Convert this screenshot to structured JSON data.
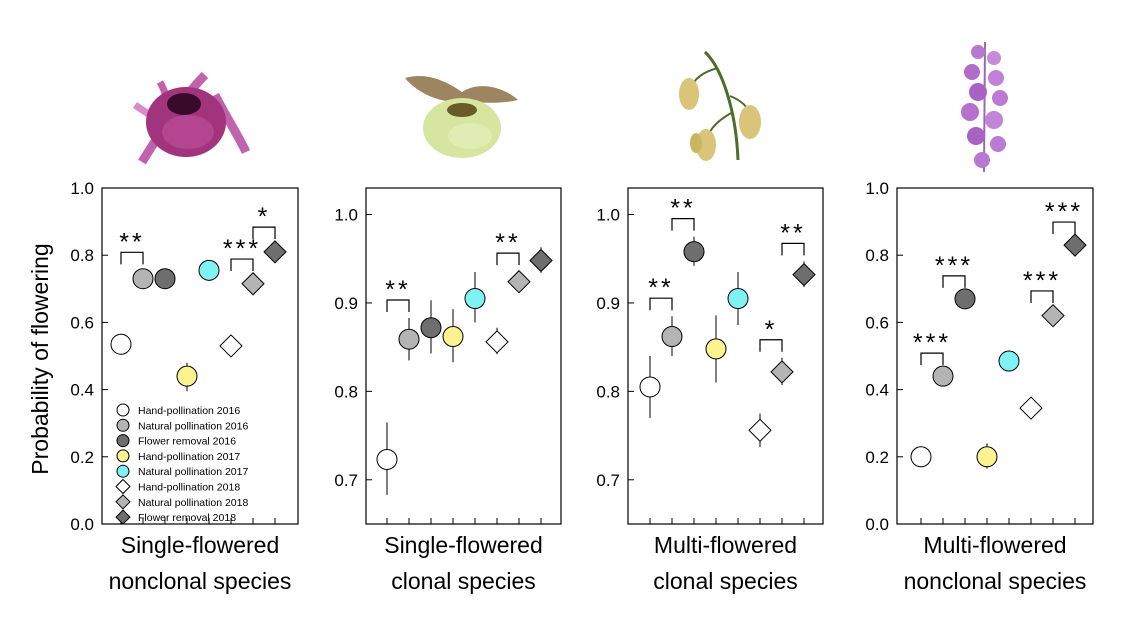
{
  "figure": {
    "y_axis_label": "Probability of flowering",
    "legend_entries": [
      {
        "label": "Hand-pollination 2016",
        "marker": "circle",
        "fill": "#ffffff"
      },
      {
        "label": "Natural pollination 2016",
        "marker": "circle",
        "fill": "#b4b4b4"
      },
      {
        "label": "Flower removal 2016",
        "marker": "circle",
        "fill": "#6e6e6e"
      },
      {
        "label": "Hand-pollination 2017",
        "marker": "circle",
        "fill": "#fbf38f"
      },
      {
        "label": "Natural pollination 2017",
        "marker": "circle",
        "fill": "#7ff2f4"
      },
      {
        "label": "Hand-pollination 2018",
        "marker": "diamond",
        "fill": "#ffffff"
      },
      {
        "label": "Natural pollination 2018",
        "marker": "diamond",
        "fill": "#b4b4b4"
      },
      {
        "label": "Flower removal 2018",
        "marker": "diamond",
        "fill": "#6e6e6e"
      }
    ],
    "flower_illustrations": [
      {
        "depicts": "pink single-flowered orchid",
        "color": "#b04a9a"
      },
      {
        "depicts": "pale green single-flowered orchid",
        "color": "#d8e6a2"
      },
      {
        "depicts": "yellow multi-flowered orchid",
        "color": "#d8c37a"
      },
      {
        "depicts": "purple multi-flowered orchid spike",
        "color": "#b87ad0"
      }
    ]
  },
  "chart_data": [
    {
      "type": "scatter",
      "title": "Single-flowered nonclonal species",
      "title_lines": [
        "Single-flowered",
        "nonclonal species"
      ],
      "ylabel": "Probability of flowering",
      "ylim": [
        0.0,
        1.0
      ],
      "yticks": [
        "0.0",
        "0.2",
        "0.4",
        "0.6",
        "0.8",
        "1.0"
      ],
      "show_legend": true,
      "points": [
        {
          "series": "Hand-pollination 2016",
          "y": 0.535,
          "lo": 0.505,
          "hi": 0.565
        },
        {
          "series": "Natural pollination 2016",
          "y": 0.73,
          "lo": 0.705,
          "hi": 0.755
        },
        {
          "series": "Flower removal 2016",
          "y": 0.73,
          "lo": 0.705,
          "hi": 0.755
        },
        {
          "series": "Hand-pollination 2017",
          "y": 0.44,
          "lo": 0.395,
          "hi": 0.48
        },
        {
          "series": "Natural pollination 2017",
          "y": 0.755,
          "lo": 0.735,
          "hi": 0.78
        },
        {
          "series": "Hand-pollination 2018",
          "y": 0.53,
          "lo": 0.515,
          "hi": 0.55
        },
        {
          "series": "Natural pollination 2018",
          "y": 0.715,
          "lo": 0.695,
          "hi": 0.735
        },
        {
          "series": "Flower removal 2018",
          "y": 0.81,
          "lo": 0.79,
          "hi": 0.83
        }
      ],
      "brackets": [
        {
          "from": 0,
          "to": 1,
          "label": "**"
        },
        {
          "from": 5,
          "to": 6,
          "label": "***"
        },
        {
          "from": 6,
          "to": 7,
          "label": "*"
        }
      ]
    },
    {
      "type": "scatter",
      "title": "Single-flowered clonal species",
      "title_lines": [
        "Single-flowered",
        "clonal species"
      ],
      "ylim": [
        0.65,
        1.03
      ],
      "yticks": [
        "0.7",
        "0.8",
        "0.9",
        "1.0"
      ],
      "show_legend": false,
      "points": [
        {
          "series": "Hand-pollination 2016",
          "y": 0.723,
          "lo": 0.683,
          "hi": 0.765
        },
        {
          "series": "Natural pollination 2016",
          "y": 0.859,
          "lo": 0.835,
          "hi": 0.883
        },
        {
          "series": "Flower removal 2016",
          "y": 0.872,
          "lo": 0.843,
          "hi": 0.903
        },
        {
          "series": "Hand-pollination 2017",
          "y": 0.862,
          "lo": 0.833,
          "hi": 0.893
        },
        {
          "series": "Natural pollination 2017",
          "y": 0.905,
          "lo": 0.878,
          "hi": 0.935
        },
        {
          "series": "Hand-pollination 2018",
          "y": 0.856,
          "lo": 0.842,
          "hi": 0.872
        },
        {
          "series": "Natural pollination 2018",
          "y": 0.924,
          "lo": 0.912,
          "hi": 0.936
        },
        {
          "series": "Flower removal 2018",
          "y": 0.948,
          "lo": 0.934,
          "hi": 0.963
        }
      ],
      "brackets": [
        {
          "from": 0,
          "to": 1,
          "label": "**"
        },
        {
          "from": 5,
          "to": 6,
          "label": "**"
        }
      ]
    },
    {
      "type": "scatter",
      "title": "Multi-flowered clonal species",
      "title_lines": [
        "Multi-flowered",
        "clonal species"
      ],
      "ylim": [
        0.65,
        1.03
      ],
      "yticks": [
        "0.7",
        "0.8",
        "0.9",
        "1.0"
      ],
      "show_legend": false,
      "points": [
        {
          "series": "Hand-pollination 2016",
          "y": 0.805,
          "lo": 0.77,
          "hi": 0.84
        },
        {
          "series": "Natural pollination 2016",
          "y": 0.862,
          "lo": 0.84,
          "hi": 0.885
        },
        {
          "series": "Flower removal 2016",
          "y": 0.958,
          "lo": 0.942,
          "hi": 0.975
        },
        {
          "series": "Hand-pollination 2017",
          "y": 0.848,
          "lo": 0.81,
          "hi": 0.886
        },
        {
          "series": "Natural pollination 2017",
          "y": 0.905,
          "lo": 0.875,
          "hi": 0.935
        },
        {
          "series": "Hand-pollination 2018",
          "y": 0.756,
          "lo": 0.737,
          "hi": 0.775
        },
        {
          "series": "Natural pollination 2018",
          "y": 0.822,
          "lo": 0.807,
          "hi": 0.838
        },
        {
          "series": "Flower removal 2018",
          "y": 0.932,
          "lo": 0.918,
          "hi": 0.947
        }
      ],
      "brackets": [
        {
          "from": 0,
          "to": 1,
          "label": "**"
        },
        {
          "from": 1,
          "to": 2,
          "label": "**"
        },
        {
          "from": 5,
          "to": 6,
          "label": "*"
        },
        {
          "from": 6,
          "to": 7,
          "label": "**"
        }
      ]
    },
    {
      "type": "scatter",
      "title": "Multi-flowered nonclonal species",
      "title_lines": [
        "Multi-flowered",
        "nonclonal species"
      ],
      "ylim": [
        0.0,
        1.0
      ],
      "yticks": [
        "0.0",
        "0.2",
        "0.4",
        "0.6",
        "0.8",
        "1.0"
      ],
      "show_legend": false,
      "points": [
        {
          "series": "Hand-pollination 2016",
          "y": 0.2,
          "lo": 0.19,
          "hi": 0.21
        },
        {
          "series": "Natural pollination 2016",
          "y": 0.44,
          "lo": 0.425,
          "hi": 0.455
        },
        {
          "series": "Flower removal 2016",
          "y": 0.67,
          "lo": 0.655,
          "hi": 0.685
        },
        {
          "series": "Hand-pollination 2017",
          "y": 0.2,
          "lo": 0.165,
          "hi": 0.24
        },
        {
          "series": "Natural pollination 2017",
          "y": 0.485,
          "lo": 0.47,
          "hi": 0.5
        },
        {
          "series": "Hand-pollination 2018",
          "y": 0.345,
          "lo": 0.335,
          "hi": 0.355
        },
        {
          "series": "Natural pollination 2018",
          "y": 0.62,
          "lo": 0.6,
          "hi": 0.64
        },
        {
          "series": "Flower removal 2018",
          "y": 0.83,
          "lo": 0.815,
          "hi": 0.845
        }
      ],
      "brackets": [
        {
          "from": 0,
          "to": 1,
          "label": "***"
        },
        {
          "from": 1,
          "to": 2,
          "label": "***"
        },
        {
          "from": 5,
          "to": 6,
          "label": "***"
        },
        {
          "from": 6,
          "to": 7,
          "label": "***"
        }
      ]
    }
  ]
}
